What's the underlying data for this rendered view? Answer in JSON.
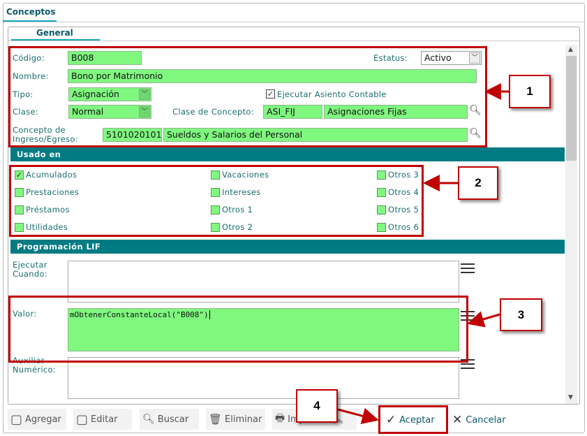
{
  "window_tab": "Conceptos",
  "sub_tab": "General",
  "form": {
    "codigo_label": "Código:",
    "codigo": "B008",
    "estatus_label": "Estatus:",
    "estatus": "Activo",
    "nombre_label": "Nombre:",
    "nombre": "Bono por Matrimonio",
    "tipo_label": "Tipo:",
    "tipo": "Asignación",
    "ejecutar_asiento_label": "Ejecutar Asiento Contable",
    "ejecutar_asiento_checked": true,
    "clase_label": "Clase:",
    "clase": "Normal",
    "clase_concepto_label": "Clase de Concepto:",
    "clase_concepto_code": "ASI_FIJ",
    "clase_concepto_name": "Asignaciones Fijas",
    "concepto_ie_label_1": "Concepto de",
    "concepto_ie_label_2": "Ingreso/Egreso:",
    "concepto_ie_code": "5101020101",
    "concepto_ie_name": "Sueldos y Salarios del Personal"
  },
  "usado_en": {
    "title": "Usado en",
    "items": [
      {
        "label": "Acumulados",
        "checked": true
      },
      {
        "label": "Prestaciones",
        "checked": false
      },
      {
        "label": "Préstamos",
        "checked": false
      },
      {
        "label": "Utilidades",
        "checked": false
      },
      {
        "label": "Vacaciones",
        "checked": false
      },
      {
        "label": "Intereses",
        "checked": false
      },
      {
        "label": "Otros 1",
        "checked": false
      },
      {
        "label": "Otros 2",
        "checked": false
      },
      {
        "label": "Otros 3",
        "checked": false
      },
      {
        "label": "Otros 4",
        "checked": false
      },
      {
        "label": "Otros 5",
        "checked": false
      },
      {
        "label": "Otros 6",
        "checked": false
      }
    ]
  },
  "lif": {
    "title": "Programación LIF",
    "ejecutar_label_1": "Ejecutar",
    "ejecutar_label_2": "Cuando:",
    "ejecutar_value": "",
    "valor_label": "Valor:",
    "valor_value": "mObtenerConstanteLocal(\"B008\")",
    "aux_label_1": "Auxiliar",
    "aux_label_2": "Numérico:",
    "aux_value": ""
  },
  "toolbar": {
    "agregar": "Agregar",
    "editar": "Editar",
    "buscar": "Buscar",
    "eliminar": "Eliminar",
    "imprimir": "Imprimir",
    "aceptar": "Aceptar",
    "cancelar": "Cancelar"
  },
  "callouts": [
    "1",
    "2",
    "3",
    "4"
  ],
  "colors": {
    "accent": "#007b83",
    "field_green": "#80f880",
    "highlight_red": "#c00000"
  }
}
